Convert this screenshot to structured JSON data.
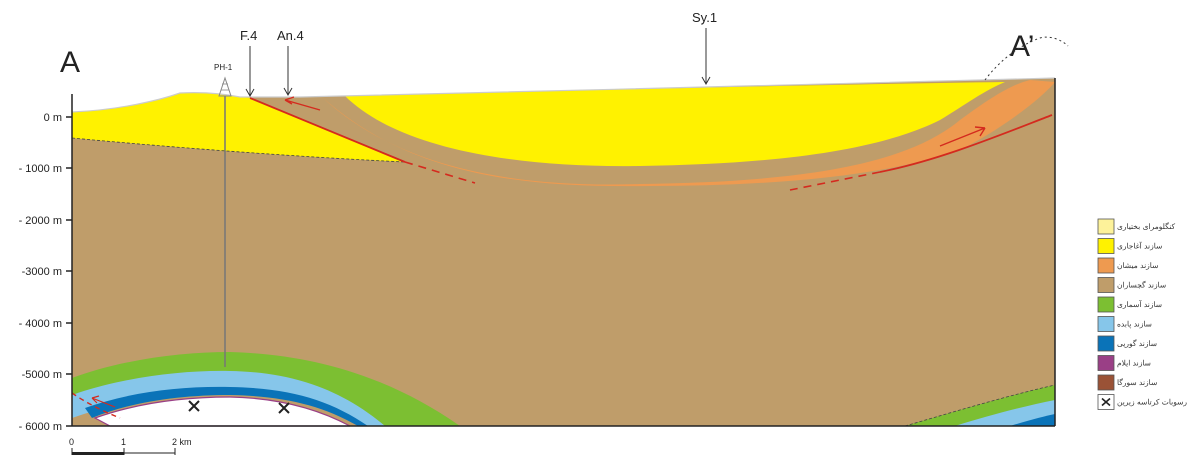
{
  "section": {
    "start_label": "A",
    "end_label": "A’",
    "wells": [
      {
        "label": "PH-1"
      },
      {
        "label": "F.4"
      },
      {
        "label": "An.4"
      },
      {
        "label": "Sy.1"
      }
    ],
    "depth_labels": [
      "0 m",
      "- 1000 m",
      "- 2000 m",
      "-3000 m",
      "- 4000 m",
      "-5000 m",
      "- 6000 m"
    ],
    "scale_labels": [
      "0",
      "1",
      "2 km"
    ],
    "legend": [
      {
        "label": "کنگلومرای بختیاری",
        "color": "#fdf29a"
      },
      {
        "label": "سازند آغاجاری",
        "color": "#fff200"
      },
      {
        "label": "سازند میشان",
        "color": "#ee9a50"
      },
      {
        "label": "سازند گچساران",
        "color": "#bf9d6a"
      },
      {
        "label": "سازند آسماری",
        "color": "#7cbf32"
      },
      {
        "label": "سازند پابده",
        "color": "#86c6ea"
      },
      {
        "label": "سازند گورپی",
        "color": "#0a73b8"
      },
      {
        "label": "سازند ایلام",
        "color": "#9a3f86"
      },
      {
        "label": "سازند سورگا",
        "color": "#9a5236"
      },
      {
        "label": "رسوبات کرتاسه زیرین",
        "color": "#ffffff"
      }
    ],
    "colors": {
      "bakhtiari": "#fdf29a",
      "aghajari": "#fff200",
      "mishan": "#ee9a50",
      "gachsaran": "#bf9d6a",
      "asmari": "#7cbf32",
      "pabdeh": "#86c6ea",
      "gurpi": "#0a73b8",
      "ilam": "#9a3f86",
      "sarvak": "#9a5236",
      "fault": "#d42a1e"
    }
  }
}
